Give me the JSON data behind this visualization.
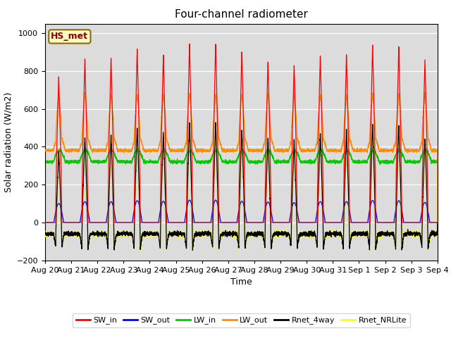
{
  "title": "Four-channel radiometer",
  "xlabel": "Time",
  "ylabel": "Solar radiation (W/m2)",
  "ylim": [
    -200,
    1050
  ],
  "n_days": 15,
  "annotation_text": "HS_met",
  "annotation_color": "#8B0000",
  "annotation_bg": "#FFFFC0",
  "annotation_border": "#8B6914",
  "bg_color": "#DCDCDC",
  "legend_entries": [
    "SW_in",
    "SW_out",
    "LW_in",
    "LW_out",
    "Rnet_4way",
    "Rnet_NRLite"
  ],
  "legend_colors": [
    "#FF0000",
    "#0000FF",
    "#00CC00",
    "#FF8C00",
    "#000000",
    "#FFFF00"
  ],
  "SW_in_peaks": [
    770,
    865,
    870,
    920,
    890,
    950,
    950,
    910,
    855,
    835,
    885,
    890,
    940,
    930,
    860
  ],
  "SW_out_peaks": [
    100,
    110,
    110,
    115,
    112,
    118,
    118,
    112,
    108,
    105,
    110,
    110,
    116,
    115,
    106
  ],
  "LW_in_base": 320,
  "LW_in_hump": 60,
  "LW_out_base": 380,
  "LW_out_hump": 80,
  "LW_out_peak_add": 220,
  "Rnet_night": -80,
  "pts_per_day": 288,
  "tick_fontsize": 8,
  "label_fontsize": 9,
  "title_fontsize": 11,
  "start_month": 8,
  "start_day": 20
}
